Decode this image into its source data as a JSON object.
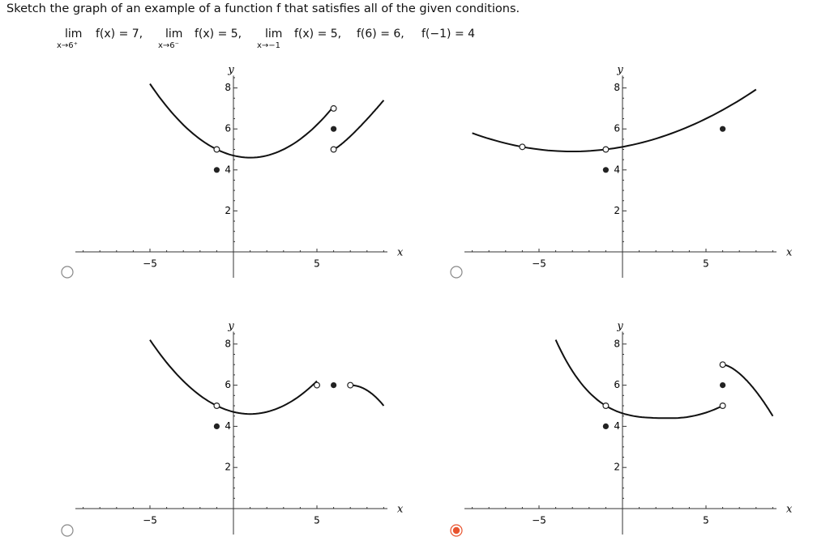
{
  "question": "Sketch the graph of an example of a function f that satisfies all of the given conditions.",
  "conditions": [
    {
      "lim": "lim",
      "expr": "f(x) = 7,",
      "sub": "x→6⁺"
    },
    {
      "lim": "lim",
      "expr": "f(x) = 5,",
      "sub": "x→6⁻"
    },
    {
      "lim": "lim",
      "expr": "f(x) = 5,",
      "sub": "x→−1"
    },
    {
      "expr": "f(6) = 6,"
    },
    {
      "expr": "f(−1) = 4"
    }
  ],
  "options": [
    {
      "x_label": "x",
      "y_label": "y",
      "x_ticks": [
        "−5",
        "5"
      ],
      "y_ticks": [
        "2",
        "4",
        "6",
        "8"
      ],
      "selected": false
    },
    {
      "x_label": "x",
      "y_label": "y",
      "x_ticks": [
        "−5",
        "5"
      ],
      "y_ticks": [
        "2",
        "4",
        "6",
        "8"
      ],
      "selected": false
    },
    {
      "x_label": "x",
      "y_label": "y",
      "x_ticks": [
        "−5",
        "5"
      ],
      "y_ticks": [
        "2",
        "4",
        "6",
        "8"
      ],
      "selected": false
    },
    {
      "x_label": "x",
      "y_label": "y",
      "x_ticks": [
        "−5",
        "5"
      ],
      "y_ticks": [
        "2",
        "4",
        "6",
        "8"
      ],
      "selected": true
    }
  ]
}
